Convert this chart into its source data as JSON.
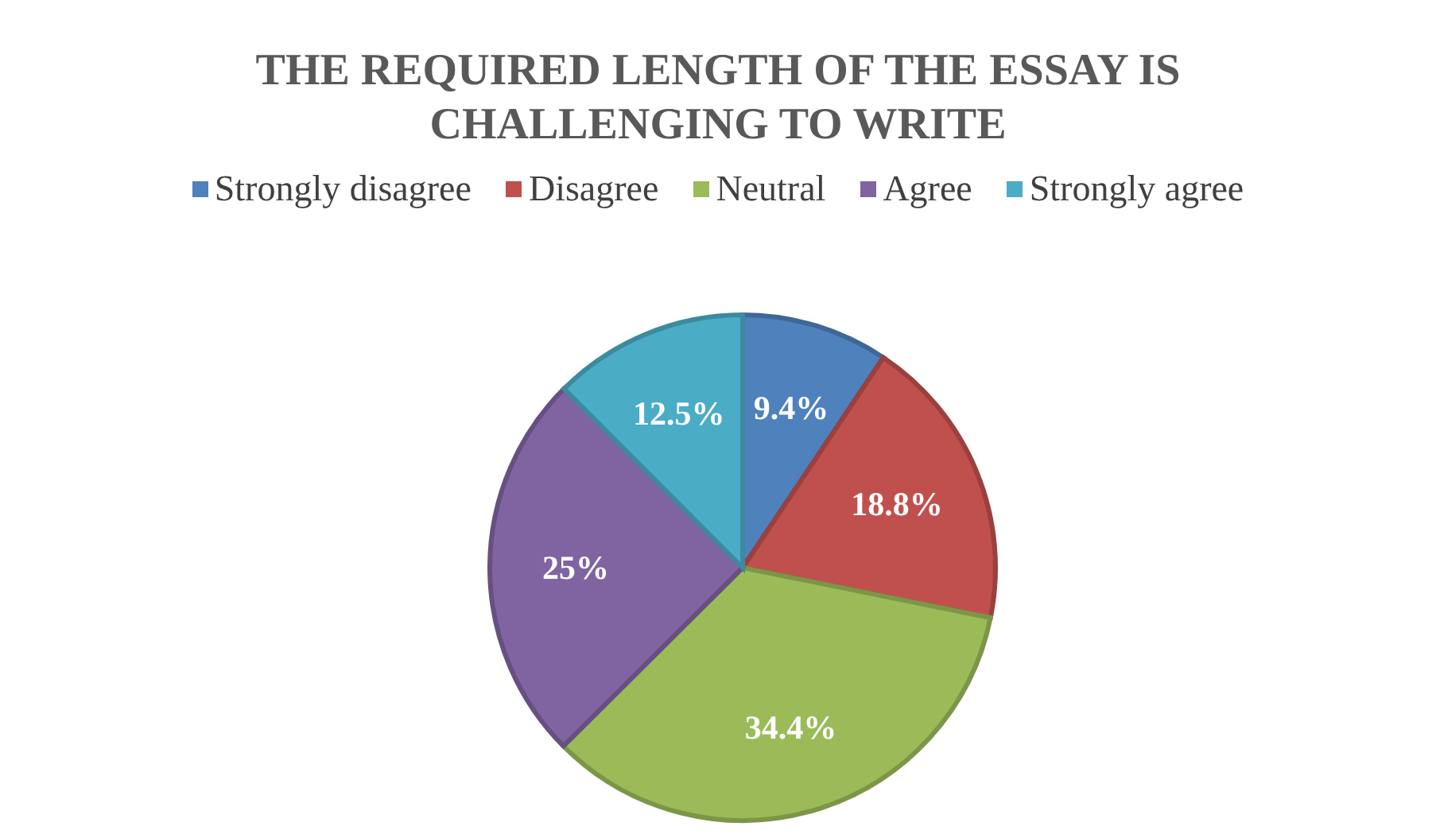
{
  "chart_data": {
    "type": "pie",
    "title": "THE REQUIRED LENGTH OF THE ESSAY IS CHALLENGING TO WRITE",
    "categories": [
      "Strongly disagree",
      "Disagree",
      "Neutral",
      "Agree",
      "Strongly agree"
    ],
    "values": [
      9.4,
      18.8,
      34.4,
      25,
      12.5
    ],
    "value_labels": [
      "9.4%",
      "18.8%",
      "34.4%",
      "25%",
      "12.5%"
    ],
    "colors": [
      "#4f81bd",
      "#c0504d",
      "#9bbb59",
      "#8064a2",
      "#4bacc6"
    ],
    "legend": "top"
  }
}
